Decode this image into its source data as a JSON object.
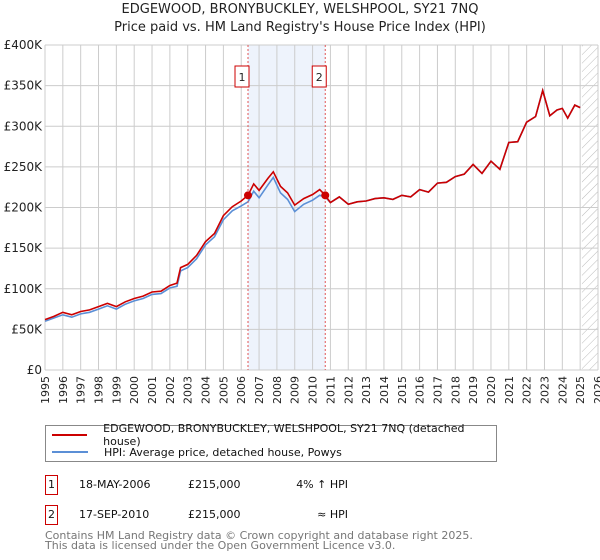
{
  "chart_data": {
    "type": "line",
    "title": "EDGEWOOD, BRONYBUCKLEY, WELSHPOOL, SY21 7NQ",
    "subtitle": "Price paid vs. HM Land Registry's House Price Index (HPI)",
    "xlim": [
      1995,
      2026
    ],
    "ylim": [
      0,
      400000
    ],
    "x_ticks": [
      "1995",
      "1996",
      "1997",
      "1998",
      "1999",
      "2000",
      "2001",
      "2002",
      "2003",
      "2004",
      "2005",
      "2006",
      "2007",
      "2008",
      "2009",
      "2010",
      "2011",
      "2012",
      "2013",
      "2014",
      "2015",
      "2016",
      "2017",
      "2018",
      "2019",
      "2020",
      "2021",
      "2022",
      "2023",
      "2024",
      "2025",
      "2026"
    ],
    "y_ticks": [
      {
        "v": 0,
        "label": "£0"
      },
      {
        "v": 50000,
        "label": "£50K"
      },
      {
        "v": 100000,
        "label": "£100K"
      },
      {
        "v": 150000,
        "label": "£150K"
      },
      {
        "v": 200000,
        "label": "£200K"
      },
      {
        "v": 250000,
        "label": "£250K"
      },
      {
        "v": 300000,
        "label": "£300K"
      },
      {
        "v": 350000,
        "label": "£350K"
      },
      {
        "v": 400000,
        "label": "£400K"
      }
    ],
    "grid": true,
    "shaded_region": [
      2006.38,
      2010.71
    ],
    "forecast_hatch_from": 2025.1,
    "series": [
      {
        "name": "EDGEWOOD, BRONYBUCKLEY, WELSHPOOL, SY21 7NQ (detached house)",
        "color": "#cc0000",
        "x": [
          1995,
          1995.5,
          1996,
          1996.5,
          1997,
          1997.5,
          1998,
          1998.5,
          1999,
          1999.5,
          2000,
          2000.5,
          2001,
          2001.5,
          2002,
          2002.4,
          2002.6,
          2003,
          2003.5,
          2004,
          2004.5,
          2005,
          2005.5,
          2006,
          2006.38,
          2006.7,
          2007,
          2007.5,
          2007.8,
          2008.2,
          2008.6,
          2009,
          2009.5,
          2010,
          2010.4,
          2010.71,
          2011,
          2011.5,
          2012,
          2012.5,
          2013,
          2013.5,
          2014,
          2014.5,
          2015,
          2015.5,
          2016,
          2016.5,
          2017,
          2017.5,
          2018,
          2018.5,
          2019,
          2019.5,
          2020,
          2020.5,
          2021,
          2021.5,
          2022,
          2022.5,
          2022.9,
          2023.3,
          2023.7,
          2024,
          2024.3,
          2024.7,
          2025
        ],
        "y": [
          62000,
          66000,
          71000,
          68000,
          72000,
          74000,
          78000,
          82000,
          78000,
          84000,
          88000,
          91000,
          96000,
          97000,
          104000,
          107000,
          126000,
          130000,
          141000,
          158000,
          168000,
          190000,
          201000,
          208000,
          215000,
          229000,
          221000,
          236000,
          244000,
          226000,
          218000,
          203000,
          211000,
          216000,
          222000,
          215000,
          206000,
          213000,
          204000,
          207000,
          208000,
          211000,
          212000,
          210000,
          215000,
          213000,
          222000,
          219000,
          230000,
          231000,
          238000,
          241000,
          253000,
          242000,
          257000,
          247000,
          280000,
          281000,
          305000,
          312000,
          344000,
          313000,
          320000,
          322000,
          310000,
          326000,
          323000
        ]
      },
      {
        "name": "HPI: Average price, detached house, Powys",
        "color": "#5b8fd6",
        "x": [
          1995,
          1995.5,
          1996,
          1996.5,
          1997,
          1997.5,
          1998,
          1998.5,
          1999,
          1999.5,
          2000,
          2000.5,
          2001,
          2001.5,
          2002,
          2002.4,
          2002.6,
          2003,
          2003.5,
          2004,
          2004.5,
          2005,
          2005.5,
          2006,
          2006.38,
          2006.7,
          2007,
          2007.5,
          2007.8,
          2008.2,
          2008.6,
          2009,
          2009.5,
          2010,
          2010.4,
          2010.71,
          2011,
          2011.5,
          2012,
          2012.5,
          2013,
          2013.5,
          2014,
          2014.5,
          2015,
          2015.5,
          2016,
          2016.5,
          2017,
          2017.5,
          2018,
          2018.5,
          2019,
          2019.5,
          2020,
          2020.5,
          2021,
          2021.5,
          2022,
          2022.5,
          2022.9,
          2023.3,
          2023.7,
          2024,
          2024.3,
          2024.7,
          2025
        ],
        "y": [
          60000,
          64000,
          68000,
          65000,
          69000,
          71000,
          75000,
          79000,
          75000,
          81000,
          85000,
          88000,
          93000,
          94000,
          101000,
          103000,
          122000,
          126000,
          137000,
          154000,
          164000,
          185000,
          196000,
          202000,
          207000,
          220000,
          212000,
          228000,
          237000,
          218000,
          210000,
          195000,
          204000,
          209000,
          215000,
          213000,
          206000,
          213000,
          204000,
          207000,
          208000,
          211000,
          212000,
          210000,
          215000,
          213000,
          222000,
          219000,
          230000,
          231000,
          238000,
          241000,
          253000,
          242000,
          257000,
          247000,
          280000,
          281000,
          305000,
          312000,
          344000,
          313000,
          320000,
          322000,
          310000,
          326000,
          323000
        ]
      }
    ],
    "annotations": [
      {
        "label": "1",
        "x": 2006.38,
        "y": 215000
      },
      {
        "label": "2",
        "x": 2010.71,
        "y": 215000
      }
    ]
  },
  "transactions": [
    {
      "num": "1",
      "date": "18-MAY-2006",
      "price": "£215,000",
      "hpi": "4% ↑ HPI"
    },
    {
      "num": "2",
      "date": "17-SEP-2010",
      "price": "£215,000",
      "hpi": "≈ HPI"
    }
  ],
  "footer": {
    "line1": "Contains HM Land Registry data © Crown copyright and database right 2025.",
    "line2": "This data is licensed under the Open Government Licence v3.0."
  }
}
